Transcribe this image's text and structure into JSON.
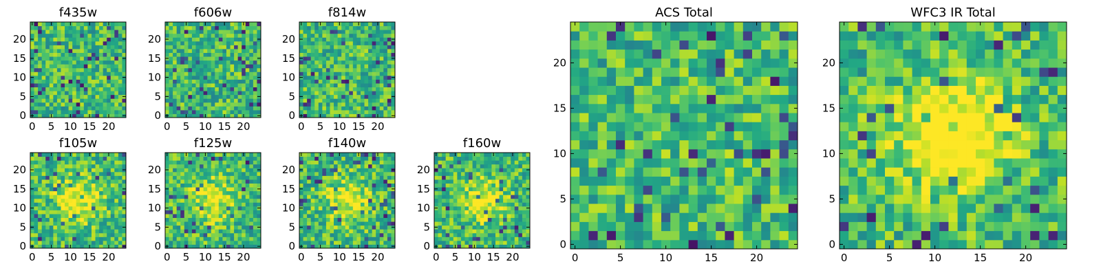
{
  "chart_data": [
    {
      "type": "heatmap",
      "title": "f435w",
      "grid_size": 25,
      "xticks": [
        0,
        5,
        10,
        15,
        20
      ],
      "yticks": [
        0,
        5,
        10,
        15,
        20
      ],
      "xlim": [
        -0.5,
        24.5
      ],
      "ylim": [
        -0.5,
        24.5
      ],
      "colormap": "viridis",
      "center_peak": 0.0,
      "seed": 11
    },
    {
      "type": "heatmap",
      "title": "f606w",
      "grid_size": 25,
      "xticks": [
        0,
        5,
        10,
        15,
        20
      ],
      "yticks": [
        0,
        5,
        10,
        15,
        20
      ],
      "xlim": [
        -0.5,
        24.5
      ],
      "ylim": [
        -0.5,
        24.5
      ],
      "colormap": "viridis",
      "center_peak": 0.0,
      "seed": 23
    },
    {
      "type": "heatmap",
      "title": "f814w",
      "grid_size": 25,
      "xticks": [
        0,
        5,
        10,
        15,
        20
      ],
      "yticks": [
        0,
        5,
        10,
        15,
        20
      ],
      "xlim": [
        -0.5,
        24.5
      ],
      "ylim": [
        -0.5,
        24.5
      ],
      "colormap": "viridis",
      "center_peak": 0.0,
      "seed": 37
    },
    {
      "type": "heatmap",
      "title": "f105w",
      "grid_size": 25,
      "xticks": [
        0,
        5,
        10,
        15,
        20
      ],
      "yticks": [
        0,
        5,
        10,
        15,
        20
      ],
      "xlim": [
        -0.5,
        24.5
      ],
      "ylim": [
        -0.5,
        24.5
      ],
      "colormap": "viridis",
      "center_peak": 0.35,
      "seed": 41
    },
    {
      "type": "heatmap",
      "title": "f125w",
      "grid_size": 25,
      "xticks": [
        0,
        5,
        10,
        15,
        20
      ],
      "yticks": [
        0,
        5,
        10,
        15,
        20
      ],
      "xlim": [
        -0.5,
        24.5
      ],
      "ylim": [
        -0.5,
        24.5
      ],
      "colormap": "viridis",
      "center_peak": 0.3,
      "seed": 53
    },
    {
      "type": "heatmap",
      "title": "f140w",
      "grid_size": 25,
      "xticks": [
        0,
        5,
        10,
        15,
        20
      ],
      "yticks": [
        0,
        5,
        10,
        15,
        20
      ],
      "xlim": [
        -0.5,
        24.5
      ],
      "ylim": [
        -0.5,
        24.5
      ],
      "colormap": "viridis",
      "center_peak": 0.3,
      "seed": 67
    },
    {
      "type": "heatmap",
      "title": "f160w",
      "grid_size": 25,
      "xticks": [
        0,
        5,
        10,
        15,
        20
      ],
      "yticks": [
        0,
        5,
        10,
        15,
        20
      ],
      "xlim": [
        -0.5,
        24.5
      ],
      "ylim": [
        -0.5,
        24.5
      ],
      "colormap": "viridis",
      "center_peak": 0.3,
      "seed": 79
    },
    {
      "type": "heatmap",
      "title": "ACS Total",
      "grid_size": 25,
      "xticks": [
        0,
        5,
        10,
        15,
        20
      ],
      "yticks": [
        0,
        5,
        10,
        15,
        20
      ],
      "xlim": [
        -0.5,
        24.5
      ],
      "ylim": [
        -0.5,
        24.5
      ],
      "colormap": "viridis",
      "center_peak": 0.05,
      "seed": 97
    },
    {
      "type": "heatmap",
      "title": "WFC3 IR Total",
      "grid_size": 25,
      "xticks": [
        0,
        5,
        10,
        15,
        20
      ],
      "yticks": [
        0,
        5,
        10,
        15,
        20
      ],
      "xlim": [
        -0.5,
        24.5
      ],
      "ylim": [
        -0.5,
        24.5
      ],
      "colormap": "viridis",
      "center_peak": 0.55,
      "seed": 113
    }
  ]
}
